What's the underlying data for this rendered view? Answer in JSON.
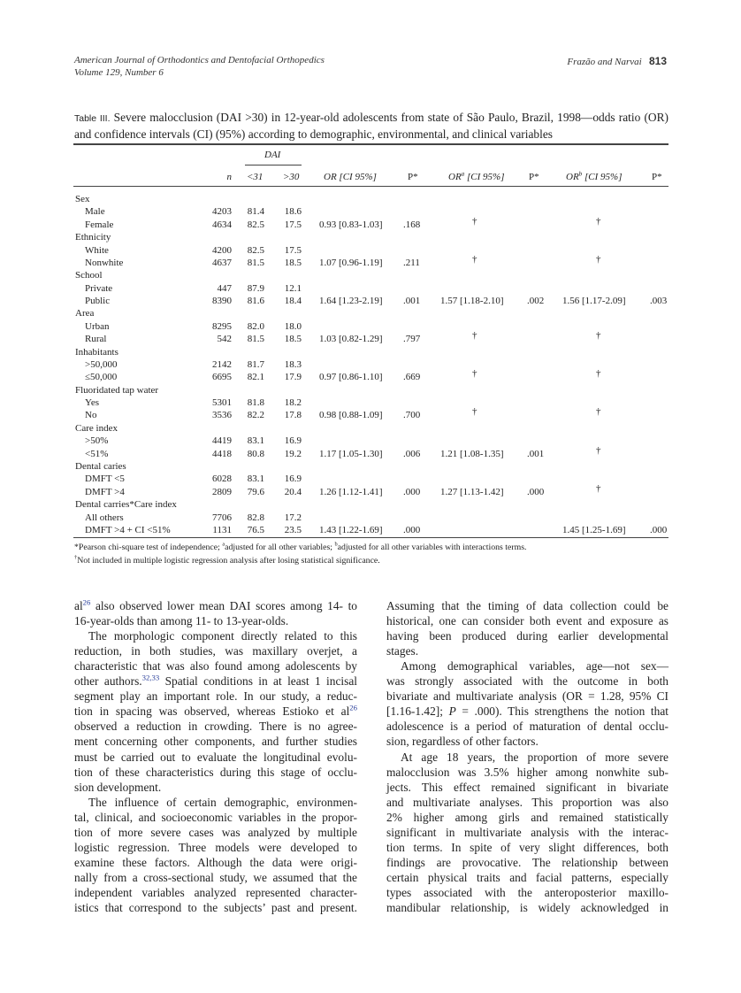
{
  "header": {
    "journal": "American Journal of Orthodontics and Dentofacial Orthopedics",
    "volume": "Volume 129, Number 6",
    "authors": "Frazão and Narvai",
    "page_number": "813"
  },
  "table": {
    "label": "Table III.",
    "caption": "Severe malocclusion (DAI >30) in 12-year-old adolescents from state of São Paulo, Brazil, 1998—odds ratio (OR) and confidence intervals (CI) (95%) according to demographic, environmental, and clinical variables",
    "group_header": "DAI",
    "columns": {
      "n": "n",
      "lt31": "<31",
      "gt30": ">30",
      "or": "OR [CI 95%]",
      "p": "P*",
      "ora_prefix": "OR",
      "ora_sup": "a",
      "ora_suffix": " [CI 95%]",
      "pa": "P*",
      "orb_prefix": "OR",
      "orb_sup": "b",
      "orb_suffix": " [CI 95%]",
      "pb": "P*"
    },
    "groups": [
      {
        "name": "Sex",
        "rows": [
          {
            "label": "Male",
            "n": "4203",
            "lt31": "81.4",
            "gt30": "18.6",
            "or": "",
            "p": "",
            "ora": "",
            "pa": "",
            "orb": "",
            "pb": ""
          },
          {
            "label": "Female",
            "n": "4634",
            "lt31": "82.5",
            "gt30": "17.5",
            "or": "0.93 [0.83-1.03]",
            "p": ".168",
            "ora": "†",
            "pa": "",
            "orb": "†",
            "pb": ""
          }
        ]
      },
      {
        "name": "Ethnicity",
        "rows": [
          {
            "label": "White",
            "n": "4200",
            "lt31": "82.5",
            "gt30": "17.5",
            "or": "",
            "p": "",
            "ora": "",
            "pa": "",
            "orb": "",
            "pb": ""
          },
          {
            "label": "Nonwhite",
            "n": "4637",
            "lt31": "81.5",
            "gt30": "18.5",
            "or": "1.07 [0.96-1.19]",
            "p": ".211",
            "ora": "†",
            "pa": "",
            "orb": "†",
            "pb": ""
          }
        ]
      },
      {
        "name": "School",
        "rows": [
          {
            "label": "Private",
            "n": "447",
            "lt31": "87.9",
            "gt30": "12.1",
            "or": "",
            "p": "",
            "ora": "",
            "pa": "",
            "orb": "",
            "pb": ""
          },
          {
            "label": "Public",
            "n": "8390",
            "lt31": "81.6",
            "gt30": "18.4",
            "or": "1.64 [1.23-2.19]",
            "p": ".001",
            "ora": "1.57 [1.18-2.10]",
            "pa": ".002",
            "orb": "1.56 [1.17-2.09]",
            "pb": ".003"
          }
        ]
      },
      {
        "name": "Area",
        "rows": [
          {
            "label": "Urban",
            "n": "8295",
            "lt31": "82.0",
            "gt30": "18.0",
            "or": "",
            "p": "",
            "ora": "",
            "pa": "",
            "orb": "",
            "pb": ""
          },
          {
            "label": "Rural",
            "n": "542",
            "lt31": "81.5",
            "gt30": "18.5",
            "or": "1.03 [0.82-1.29]",
            "p": ".797",
            "ora": "†",
            "pa": "",
            "orb": "†",
            "pb": ""
          }
        ]
      },
      {
        "name": "Inhabitants",
        "rows": [
          {
            "label": ">50,000",
            "n": "2142",
            "lt31": "81.7",
            "gt30": "18.3",
            "or": "",
            "p": "",
            "ora": "",
            "pa": "",
            "orb": "",
            "pb": ""
          },
          {
            "label": "≤50,000",
            "n": "6695",
            "lt31": "82.1",
            "gt30": "17.9",
            "or": "0.97 [0.86-1.10]",
            "p": ".669",
            "ora": "†",
            "pa": "",
            "orb": "†",
            "pb": ""
          }
        ]
      },
      {
        "name": "Fluoridated tap water",
        "rows": [
          {
            "label": "Yes",
            "n": "5301",
            "lt31": "81.8",
            "gt30": "18.2",
            "or": "",
            "p": "",
            "ora": "",
            "pa": "",
            "orb": "",
            "pb": ""
          },
          {
            "label": "No",
            "n": "3536",
            "lt31": "82.2",
            "gt30": "17.8",
            "or": "0.98 [0.88-1.09]",
            "p": ".700",
            "ora": "†",
            "pa": "",
            "orb": "†",
            "pb": ""
          }
        ]
      },
      {
        "name": "Care index",
        "rows": [
          {
            "label": ">50%",
            "n": "4419",
            "lt31": "83.1",
            "gt30": "16.9",
            "or": "",
            "p": "",
            "ora": "",
            "pa": "",
            "orb": "",
            "pb": ""
          },
          {
            "label": "<51%",
            "n": "4418",
            "lt31": "80.8",
            "gt30": "19.2",
            "or": "1.17 [1.05-1.30]",
            "p": ".006",
            "ora": "1.21 [1.08-1.35]",
            "pa": ".001",
            "orb": "†",
            "pb": ""
          }
        ]
      },
      {
        "name": "Dental caries",
        "rows": [
          {
            "label": "DMFT <5",
            "n": "6028",
            "lt31": "83.1",
            "gt30": "16.9",
            "or": "",
            "p": "",
            "ora": "",
            "pa": "",
            "orb": "",
            "pb": ""
          },
          {
            "label": "DMFT >4",
            "n": "2809",
            "lt31": "79.6",
            "gt30": "20.4",
            "or": "1.26 [1.12-1.41]",
            "p": ".000",
            "ora": "1.27 [1.13-1.42]",
            "pa": ".000",
            "orb": "†",
            "pb": ""
          }
        ]
      },
      {
        "name": "Dental carries*Care index",
        "rows": [
          {
            "label": "All others",
            "n": "7706",
            "lt31": "82.8",
            "gt30": "17.2",
            "or": "",
            "p": "",
            "ora": "",
            "pa": "",
            "orb": "",
            "pb": ""
          },
          {
            "label": "DMFT >4 + CI <51%",
            "n": "1131",
            "lt31": "76.5",
            "gt30": "23.5",
            "or": "1.43 [1.22-1.69]",
            "p": ".000",
            "ora": "",
            "pa": "",
            "orb": "1.45 [1.25-1.69]",
            "pb": ".000"
          }
        ]
      }
    ],
    "footnotes": {
      "line1_a": "*Pearson chi-square test of independence; ",
      "sup_a": "a",
      "line1_b": "adjusted for all other variables; ",
      "sup_b": "b",
      "line1_c": "adjusted for all other variables with interactions terms.",
      "sup_dagger": "†",
      "line2": "Not included in multiple logistic regression analysis after losing statistical significance."
    }
  },
  "body": {
    "left_column": [
      [
        [
          {
            "t": "al"
          },
          {
            "sup": "26"
          },
          {
            "t": " also observed lower mean DAI scores among 14- to"
          }
        ],
        [
          {
            "t": "16-year-olds than among 11- to 13-year-olds."
          }
        ]
      ],
      [
        [
          {
            "t": "The morphologic component directly related to this"
          }
        ],
        [
          {
            "t": "reduction, in both studies, was maxillary overjet, a"
          }
        ],
        [
          {
            "t": "characteristic that was also found among adolescents by"
          }
        ],
        [
          {
            "t": "other authors."
          },
          {
            "sup": "32,33"
          },
          {
            "t": " Spatial conditions in at least 1 incisal"
          }
        ],
        [
          {
            "t": "segment play an important role. In our study, a reduc-"
          }
        ],
        [
          {
            "t": "tion in spacing was observed, whereas Estioko et al"
          },
          {
            "sup": "26"
          }
        ],
        [
          {
            "t": "observed a reduction in crowding. There is no agree-"
          }
        ],
        [
          {
            "t": "ment concerning other components, and further studies"
          }
        ],
        [
          {
            "t": "must be carried out to evaluate the longitudinal evolu-"
          }
        ],
        [
          {
            "t": "tion of these characteristics during this stage of occlu-"
          }
        ],
        [
          {
            "t": "sion development."
          }
        ]
      ],
      [
        [
          {
            "t": "The influence of certain demographic, environmen-"
          }
        ],
        [
          {
            "t": "tal, clinical, and socioeconomic variables in the propor-"
          }
        ],
        [
          {
            "t": "tion of more severe cases was analyzed by multiple"
          }
        ],
        [
          {
            "t": "logistic regression. Three models were developed to"
          }
        ],
        [
          {
            "t": "examine these factors. Although the data were origi-"
          }
        ],
        [
          {
            "t": "nally from a cross-sectional study, we assumed that the"
          }
        ],
        [
          {
            "t": "independent variables analyzed represented character-"
          }
        ],
        [
          {
            "t": "istics that correspond to the subjects’ past and present."
          }
        ]
      ]
    ],
    "right_column": [
      [
        [
          {
            "t": "Assuming that the timing of data collection could be"
          }
        ],
        [
          {
            "t": "historical, one can consider both event and exposure as"
          }
        ],
        [
          {
            "t": "having been produced during earlier developmental"
          }
        ],
        [
          {
            "t": "stages."
          }
        ]
      ],
      [
        [
          {
            "t": "Among demographical variables, age—not sex—"
          }
        ],
        [
          {
            "t": "was strongly associated with the outcome in both"
          }
        ],
        [
          {
            "t": "bivariate and multivariate analysis (OR = 1.28, 95% CI"
          }
        ],
        [
          {
            "t": "[1.16-1.42]; "
          },
          {
            "i": "P"
          },
          {
            "t": " = .000). This strengthens the notion that"
          }
        ],
        [
          {
            "t": "adolescence is a period of maturation of dental occlu-"
          }
        ],
        [
          {
            "t": "sion, regardless of other factors."
          }
        ]
      ],
      [
        [
          {
            "t": "At age 18 years, the proportion of more severe"
          }
        ],
        [
          {
            "t": "malocclusion was 3.5% higher among nonwhite sub-"
          }
        ],
        [
          {
            "t": "jects. This effect remained significant in bivariate"
          }
        ],
        [
          {
            "t": "and multivariate analyses. This proportion was also"
          }
        ],
        [
          {
            "t": "2% higher among girls and remained statistically"
          }
        ],
        [
          {
            "t": "significant in multivariate analysis with the interac-"
          }
        ],
        [
          {
            "t": "tion terms. In spite of very slight differences, both"
          }
        ],
        [
          {
            "t": "findings are provocative. The relationship between"
          }
        ],
        [
          {
            "t": "certain physical traits and facial patterns, especially"
          }
        ],
        [
          {
            "t": "types associated with the anteroposterior maxillo-"
          }
        ],
        [
          {
            "t": "mandibular relationship, is widely acknowledged in"
          }
        ]
      ]
    ]
  }
}
